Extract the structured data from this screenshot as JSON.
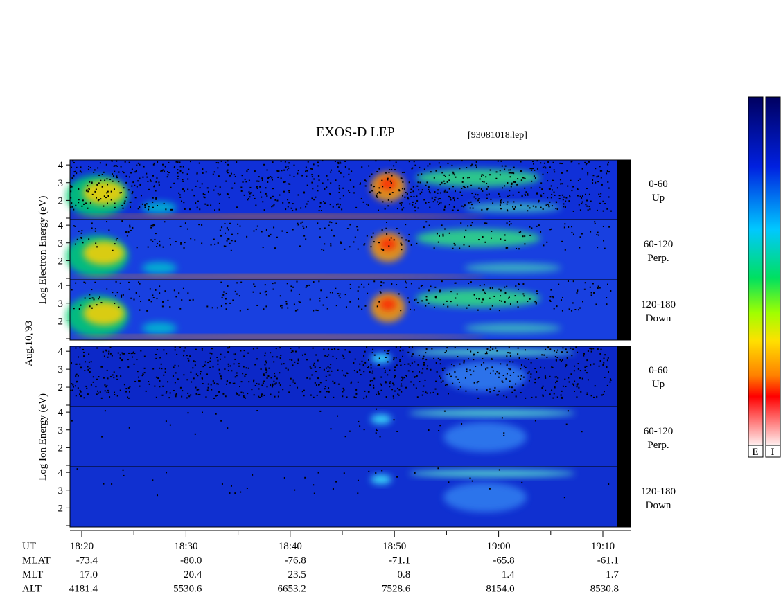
{
  "header": {
    "title": "EXOS-D LEP",
    "file": "[93081018.lep]"
  },
  "date": "Aug.10,'93",
  "electron": {
    "axis_label": "Log Electron Energy (eV)",
    "panels": [
      {
        "range": "0-60",
        "direction": "Up"
      },
      {
        "range": "60-120",
        "direction": "Perp."
      },
      {
        "range": "120-180",
        "direction": "Down"
      }
    ]
  },
  "ion": {
    "axis_label": "Log Ion Energy (eV)",
    "panels": [
      {
        "range": "0-60",
        "direction": "Up"
      },
      {
        "range": "60-120",
        "direction": "Perp."
      },
      {
        "range": "120-180",
        "direction": "Down"
      }
    ]
  },
  "energy_axis": {
    "ylim": [
      1,
      4.2
    ],
    "yticks": [
      2,
      3,
      4
    ]
  },
  "time_table": {
    "rows": [
      {
        "label": "UT",
        "values": [
          "18:20",
          "18:30",
          "18:40",
          "18:50",
          "19:00",
          "19:10"
        ]
      },
      {
        "label": "MLAT",
        "values": [
          "-73.4",
          "-80.0",
          "-76.8",
          "-71.1",
          "-65.8",
          "-61.1"
        ]
      },
      {
        "label": "MLT",
        "values": [
          "17.0",
          "20.4",
          "23.5",
          "0.8",
          "1.4",
          "1.7"
        ]
      },
      {
        "label": "ALT",
        "values": [
          "4181.4",
          "5530.6",
          "6653.2",
          "7528.6",
          "8154.0",
          "8530.8"
        ]
      }
    ]
  },
  "colorbar": {
    "labels": [
      "E",
      "I"
    ]
  }
}
